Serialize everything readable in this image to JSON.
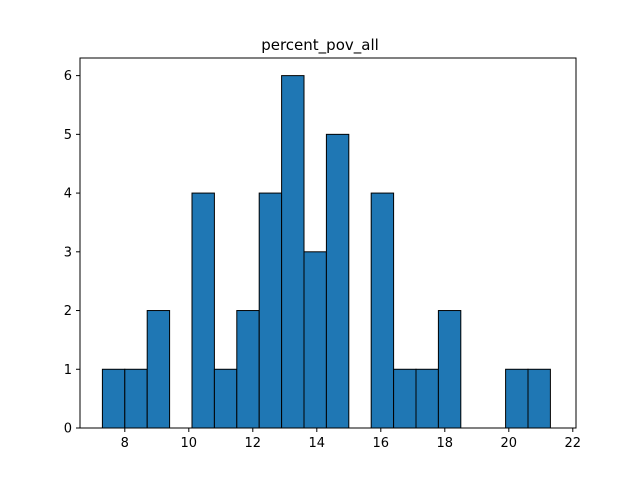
{
  "chart_data": {
    "type": "bar",
    "title": "percent_pov_all",
    "xlabel": "",
    "ylabel": "",
    "xlim": [
      6.6,
      22.1
    ],
    "ylim": [
      0,
      6.3
    ],
    "xticks": [
      8,
      10,
      12,
      14,
      16,
      18,
      20,
      22
    ],
    "yticks": [
      0,
      1,
      2,
      3,
      4,
      5,
      6
    ],
    "bar_color": "#1f77b4",
    "edge_color": "#000000",
    "grid": false,
    "bins": [
      {
        "x0": 7.3,
        "x1": 8.0,
        "count": 1
      },
      {
        "x0": 8.0,
        "x1": 8.7,
        "count": 1
      },
      {
        "x0": 8.7,
        "x1": 9.4,
        "count": 2
      },
      {
        "x0": 9.4,
        "x1": 10.1,
        "count": 0
      },
      {
        "x0": 10.1,
        "x1": 10.8,
        "count": 4
      },
      {
        "x0": 10.8,
        "x1": 11.5,
        "count": 1
      },
      {
        "x0": 11.5,
        "x1": 12.2,
        "count": 2
      },
      {
        "x0": 12.2,
        "x1": 12.9,
        "count": 4
      },
      {
        "x0": 12.9,
        "x1": 13.6,
        "count": 6
      },
      {
        "x0": 13.6,
        "x1": 14.3,
        "count": 3
      },
      {
        "x0": 14.3,
        "x1": 15.0,
        "count": 5
      },
      {
        "x0": 15.0,
        "x1": 15.7,
        "count": 0
      },
      {
        "x0": 15.7,
        "x1": 16.4,
        "count": 4
      },
      {
        "x0": 16.4,
        "x1": 17.1,
        "count": 1
      },
      {
        "x0": 17.1,
        "x1": 17.8,
        "count": 1
      },
      {
        "x0": 17.8,
        "x1": 18.5,
        "count": 2
      },
      {
        "x0": 18.5,
        "x1": 19.2,
        "count": 0
      },
      {
        "x0": 19.2,
        "x1": 19.9,
        "count": 0
      },
      {
        "x0": 19.9,
        "x1": 20.6,
        "count": 1
      },
      {
        "x0": 20.6,
        "x1": 21.3,
        "count": 1
      }
    ]
  }
}
